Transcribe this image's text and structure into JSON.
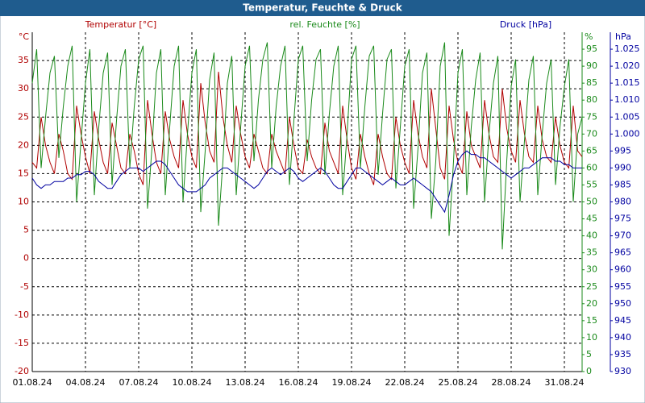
{
  "chart_data": {
    "type": "line",
    "title": "Temperatur, Feuchte & Druck",
    "y_label": "°C",
    "y2_label": "%",
    "y3_label": "hPa",
    "xlim": [
      0,
      31
    ],
    "xticks": [
      {
        "value": 0,
        "label": "01.08.24"
      },
      {
        "value": 3,
        "label": "04.08.24"
      },
      {
        "value": 6,
        "label": "07.08.24"
      },
      {
        "value": 9,
        "label": "10.08.24"
      },
      {
        "value": 12,
        "label": "13.08.24"
      },
      {
        "value": 15,
        "label": "16.08.24"
      },
      {
        "value": 18,
        "label": "19.08.24"
      },
      {
        "value": 21,
        "label": "22.08.24"
      },
      {
        "value": 24,
        "label": "25.08.24"
      },
      {
        "value": 27,
        "label": "28.08.24"
      },
      {
        "value": 30,
        "label": "31.08.24"
      }
    ],
    "ylim": [
      -20,
      40
    ],
    "yticks": [
      -20,
      -15,
      -10,
      -5,
      0,
      5,
      10,
      15,
      20,
      25,
      30,
      35
    ],
    "y2lim": [
      0,
      100
    ],
    "y2ticks": [
      0,
      5,
      10,
      15,
      20,
      25,
      30,
      35,
      40,
      45,
      50,
      55,
      60,
      65,
      70,
      75,
      80,
      85,
      90,
      95
    ],
    "y3lim": [
      930,
      1030
    ],
    "y3ticks": [
      930,
      935,
      940,
      945,
      950,
      955,
      960,
      965,
      970,
      975,
      980,
      985,
      990,
      995,
      {
        "value": 1000,
        "label": "1.000"
      },
      {
        "value": 1005,
        "label": "1.005"
      },
      {
        "value": 1010,
        "label": "1.010"
      },
      {
        "value": 1015,
        "label": "1.015"
      },
      {
        "value": 1020,
        "label": "1.020"
      },
      {
        "value": 1025,
        "label": "1.025"
      }
    ],
    "grid": true,
    "x": [
      0,
      0.25,
      0.5,
      0.75,
      1,
      1.25,
      1.5,
      1.75,
      2,
      2.25,
      2.5,
      2.75,
      3,
      3.25,
      3.5,
      3.75,
      4,
      4.25,
      4.5,
      4.75,
      5,
      5.25,
      5.5,
      5.75,
      6,
      6.25,
      6.5,
      6.75,
      7,
      7.25,
      7.5,
      7.75,
      8,
      8.25,
      8.5,
      8.75,
      9,
      9.25,
      9.5,
      9.75,
      10,
      10.25,
      10.5,
      10.75,
      11,
      11.25,
      11.5,
      11.75,
      12,
      12.25,
      12.5,
      12.75,
      13,
      13.25,
      13.5,
      13.75,
      14,
      14.25,
      14.5,
      14.75,
      15,
      15.25,
      15.5,
      15.75,
      16,
      16.25,
      16.5,
      16.75,
      17,
      17.25,
      17.5,
      17.75,
      18,
      18.25,
      18.5,
      18.75,
      19,
      19.25,
      19.5,
      19.75,
      20,
      20.25,
      20.5,
      20.75,
      21,
      21.25,
      21.5,
      21.75,
      22,
      22.25,
      22.5,
      22.75,
      23,
      23.25,
      23.5,
      23.75,
      24,
      24.25,
      24.5,
      24.75,
      25,
      25.25,
      25.5,
      25.75,
      26,
      26.25,
      26.5,
      26.75,
      27,
      27.25,
      27.5,
      27.75,
      28,
      28.25,
      28.5,
      28.75,
      29,
      29.25,
      29.5,
      29.75,
      30,
      30.25,
      30.5,
      30.75,
      31
    ],
    "series": [
      {
        "name": "Temperatur [°C]",
        "color": "#b00000",
        "axis": "y",
        "values": [
          17,
          16,
          25,
          20,
          17,
          15,
          22,
          19,
          15,
          14,
          27,
          22,
          18,
          15,
          26,
          21,
          17,
          15,
          24,
          20,
          16,
          15,
          22,
          19,
          15,
          13,
          28,
          22,
          17,
          15,
          26,
          21,
          18,
          16,
          28,
          22,
          18,
          16,
          31,
          24,
          19,
          17,
          33,
          25,
          20,
          17,
          27,
          22,
          18,
          16,
          22,
          19,
          16,
          15,
          22,
          19,
          17,
          15,
          25,
          20,
          16,
          15,
          21,
          18,
          16,
          15,
          24,
          19,
          17,
          15,
          27,
          21,
          16,
          14,
          22,
          18,
          15,
          13,
          22,
          18,
          15,
          14,
          25,
          20,
          17,
          15,
          28,
          22,
          18,
          16,
          30,
          23,
          16,
          14,
          27,
          21,
          17,
          15,
          26,
          20,
          18,
          16,
          28,
          22,
          18,
          17,
          30,
          23,
          19,
          17,
          28,
          22,
          18,
          17,
          27,
          21,
          18,
          17,
          25,
          20,
          17,
          16,
          27,
          19,
          18
        ]
      },
      {
        "name": "rel. Feuchte [%]",
        "color": "#1a8a1a",
        "axis": "y2",
        "values": [
          85,
          95,
          60,
          75,
          88,
          93,
          63,
          78,
          90,
          96,
          50,
          68,
          85,
          95,
          52,
          72,
          88,
          94,
          55,
          74,
          90,
          95,
          60,
          78,
          92,
          96,
          48,
          66,
          88,
          95,
          52,
          72,
          90,
          96,
          50,
          70,
          88,
          95,
          47,
          65,
          86,
          94,
          43,
          62,
          85,
          93,
          52,
          72,
          90,
          96,
          62,
          80,
          92,
          97,
          60,
          78,
          90,
          96,
          55,
          74,
          92,
          96,
          62,
          80,
          92,
          95,
          58,
          76,
          90,
          96,
          52,
          70,
          92,
          96,
          60,
          78,
          93,
          96,
          58,
          76,
          92,
          95,
          54,
          72,
          90,
          95,
          48,
          66,
          88,
          94,
          45,
          62,
          90,
          97,
          40,
          62,
          88,
          95,
          52,
          72,
          86,
          94,
          50,
          70,
          85,
          93,
          36,
          62,
          84,
          92,
          50,
          68,
          86,
          93,
          52,
          70,
          85,
          92,
          55,
          72,
          84,
          92,
          50,
          70,
          75
        ]
      },
      {
        "name": "Druck [hPa]",
        "color": "#0000a0",
        "axis": "y3",
        "values": [
          987,
          985,
          984,
          985,
          985,
          986,
          986,
          986,
          987,
          987,
          988,
          988,
          989,
          989,
          988,
          986,
          985,
          984,
          984,
          986,
          988,
          989,
          990,
          990,
          990,
          989,
          990,
          991,
          992,
          992,
          991,
          989,
          987,
          985,
          984,
          983,
          983,
          983,
          984,
          985,
          987,
          988,
          989,
          990,
          990,
          989,
          988,
          987,
          986,
          985,
          984,
          985,
          987,
          989,
          990,
          989,
          988,
          989,
          990,
          989,
          987,
          986,
          987,
          988,
          989,
          990,
          989,
          987,
          985,
          984,
          984,
          986,
          988,
          990,
          990,
          989,
          988,
          987,
          986,
          985,
          986,
          987,
          986,
          985,
          985,
          986,
          987,
          986,
          985,
          984,
          983,
          981,
          979,
          977,
          982,
          988,
          992,
          994,
          995,
          994,
          994,
          993,
          993,
          992,
          991,
          990,
          989,
          988,
          987,
          988,
          989,
          990,
          990,
          991,
          992,
          993,
          993,
          993,
          992,
          992,
          991,
          991,
          990,
          990,
          990
        ]
      }
    ]
  }
}
